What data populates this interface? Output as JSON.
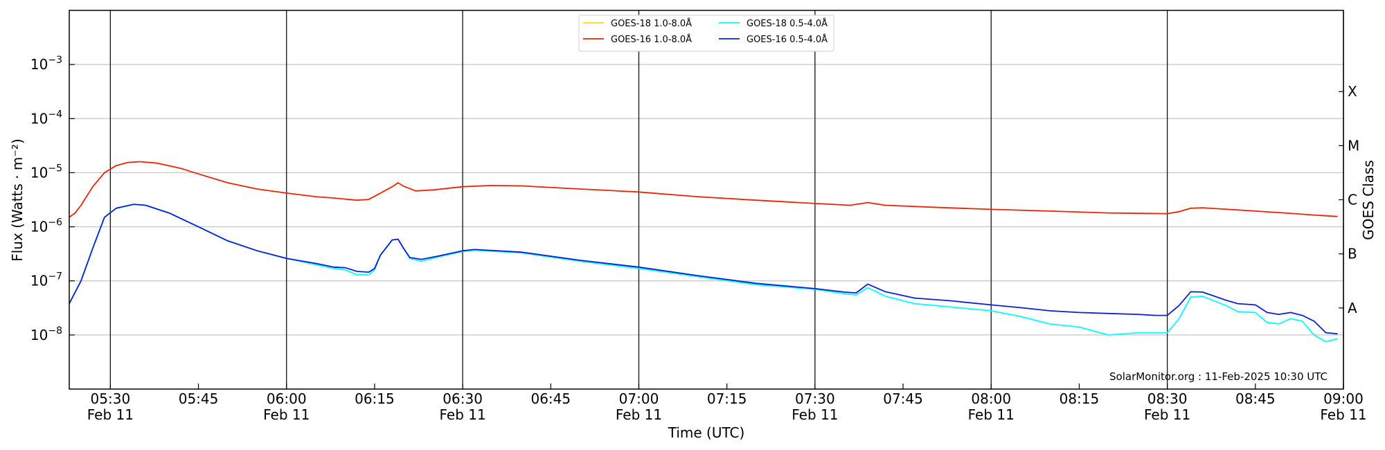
{
  "chart_data": {
    "type": "line",
    "xlabel": "Time (UTC)",
    "ylabel": "Flux (Watts · m⁻²)",
    "y2label": "GOES Class",
    "x_range": [
      "05:23",
      "09:00"
    ],
    "y_scale": "log",
    "ylim": [
      1e-09,
      0.01
    ],
    "grid": "on",
    "legend_position": "top-center",
    "credit": "SolarMonitor.org : 11-Feb-2025 10:30 UTC",
    "x_ticks": [
      {
        "time": "05:30",
        "label": "05:30",
        "date": "Feb 11"
      },
      {
        "time": "05:45",
        "label": "05:45",
        "date": ""
      },
      {
        "time": "06:00",
        "label": "06:00",
        "date": "Feb 11"
      },
      {
        "time": "06:15",
        "label": "06:15",
        "date": ""
      },
      {
        "time": "06:30",
        "label": "06:30",
        "date": "Feb 11"
      },
      {
        "time": "06:45",
        "label": "06:45",
        "date": ""
      },
      {
        "time": "07:00",
        "label": "07:00",
        "date": "Feb 11"
      },
      {
        "time": "07:15",
        "label": "07:15",
        "date": ""
      },
      {
        "time": "07:30",
        "label": "07:30",
        "date": "Feb 11"
      },
      {
        "time": "07:45",
        "label": "07:45",
        "date": ""
      },
      {
        "time": "08:00",
        "label": "08:00",
        "date": "Feb 11"
      },
      {
        "time": "08:15",
        "label": "08:15",
        "date": ""
      },
      {
        "time": "08:30",
        "label": "08:30",
        "date": "Feb 11"
      },
      {
        "time": "08:45",
        "label": "08:45",
        "date": ""
      },
      {
        "time": "09:00",
        "label": "09:00",
        "date": "Feb 11"
      }
    ],
    "y_ticks": [
      {
        "exp": -8
      },
      {
        "exp": -7
      },
      {
        "exp": -6
      },
      {
        "exp": -5
      },
      {
        "exp": -4
      },
      {
        "exp": -3
      }
    ],
    "class_labels": [
      {
        "label": "A",
        "value": 3.16e-08
      },
      {
        "label": "B",
        "value": 3.16e-07
      },
      {
        "label": "C",
        "value": 3.16e-06
      },
      {
        "label": "M",
        "value": 3.16e-05
      },
      {
        "label": "X",
        "value": 0.000316
      }
    ],
    "series": [
      {
        "name": "GOES-18 1.0-8.0Å",
        "color": "#ffd700",
        "points": []
      },
      {
        "name": "GOES-18 0.5-4.0Å",
        "color": "#00ffff",
        "points": [
          [
            "05:23",
            3.8e-08
          ],
          [
            "05:25",
            1e-07
          ],
          [
            "05:27",
            4e-07
          ],
          [
            "05:29",
            1.5e-06
          ],
          [
            "05:31",
            2.2e-06
          ],
          [
            "05:34",
            2.6e-06
          ],
          [
            "05:36",
            2.5e-06
          ],
          [
            "05:40",
            1.8e-06
          ],
          [
            "05:45",
            1e-06
          ],
          [
            "05:50",
            5.5e-07
          ],
          [
            "05:55",
            3.6e-07
          ],
          [
            "06:00",
            2.6e-07
          ],
          [
            "06:05",
            2e-07
          ],
          [
            "06:08",
            1.7e-07
          ],
          [
            "06:10",
            1.6e-07
          ],
          [
            "06:12",
            1.3e-07
          ],
          [
            "06:14",
            1.3e-07
          ],
          [
            "06:15",
            1.6e-07
          ],
          [
            "06:16",
            3e-07
          ],
          [
            "06:18",
            5.7e-07
          ],
          [
            "06:19",
            5.9e-07
          ],
          [
            "06:20",
            3.9e-07
          ],
          [
            "06:21",
            2.6e-07
          ],
          [
            "06:23",
            2.3e-07
          ],
          [
            "06:26",
            2.8e-07
          ],
          [
            "06:30",
            3.5e-07
          ],
          [
            "06:32",
            3.7e-07
          ],
          [
            "06:40",
            3.3e-07
          ],
          [
            "06:50",
            2.3e-07
          ],
          [
            "07:00",
            1.7e-07
          ],
          [
            "07:10",
            1.2e-07
          ],
          [
            "07:20",
            8.5e-08
          ],
          [
            "07:30",
            7e-08
          ],
          [
            "07:35",
            5.8e-08
          ],
          [
            "07:37",
            5.5e-08
          ],
          [
            "07:39",
            7.5e-08
          ],
          [
            "07:42",
            5.2e-08
          ],
          [
            "07:47",
            3.8e-08
          ],
          [
            "07:53",
            3.3e-08
          ],
          [
            "08:00",
            2.8e-08
          ],
          [
            "08:05",
            2.2e-08
          ],
          [
            "08:10",
            1.6e-08
          ],
          [
            "08:15",
            1.4e-08
          ],
          [
            "08:20",
            1e-08
          ],
          [
            "08:25",
            1.1e-08
          ],
          [
            "08:28",
            1.1e-08
          ],
          [
            "08:30",
            1.1e-08
          ],
          [
            "08:32",
            2e-08
          ],
          [
            "08:34",
            5e-08
          ],
          [
            "08:36",
            5.2e-08
          ],
          [
            "08:40",
            3.5e-08
          ],
          [
            "08:42",
            2.7e-08
          ],
          [
            "08:45",
            2.6e-08
          ],
          [
            "08:47",
            1.7e-08
          ],
          [
            "08:49",
            1.6e-08
          ],
          [
            "08:51",
            2e-08
          ],
          [
            "08:53",
            1.8e-08
          ],
          [
            "08:55",
            1e-08
          ],
          [
            "08:57",
            7.5e-09
          ],
          [
            "08:59",
            8.5e-09
          ]
        ]
      },
      {
        "name": "GOES-16 1.0-8.0Å",
        "color": "#ee2200",
        "points": [
          [
            "05:23",
            1.5e-06
          ],
          [
            "05:24",
            1.8e-06
          ],
          [
            "05:25",
            2.5e-06
          ],
          [
            "05:27",
            5.5e-06
          ],
          [
            "05:29",
            1e-05
          ],
          [
            "05:31",
            1.35e-05
          ],
          [
            "05:33",
            1.55e-05
          ],
          [
            "05:35",
            1.6e-05
          ],
          [
            "05:38",
            1.5e-05
          ],
          [
            "05:42",
            1.2e-05
          ],
          [
            "05:45",
            9.5e-06
          ],
          [
            "05:50",
            6.5e-06
          ],
          [
            "05:55",
            5e-06
          ],
          [
            "06:00",
            4.2e-06
          ],
          [
            "06:05",
            3.6e-06
          ],
          [
            "06:08",
            3.4e-06
          ],
          [
            "06:12",
            3.1e-06
          ],
          [
            "06:14",
            3.2e-06
          ],
          [
            "06:16",
            4.2e-06
          ],
          [
            "06:18",
            5.5e-06
          ],
          [
            "06:19",
            6.5e-06
          ],
          [
            "06:20",
            5.6e-06
          ],
          [
            "06:22",
            4.6e-06
          ],
          [
            "06:25",
            4.8e-06
          ],
          [
            "06:30",
            5.5e-06
          ],
          [
            "06:35",
            5.8e-06
          ],
          [
            "06:40",
            5.7e-06
          ],
          [
            "06:50",
            5e-06
          ],
          [
            "07:00",
            4.4e-06
          ],
          [
            "07:10",
            3.6e-06
          ],
          [
            "07:20",
            3.1e-06
          ],
          [
            "07:30",
            2.7e-06
          ],
          [
            "07:36",
            2.5e-06
          ],
          [
            "07:39",
            2.8e-06
          ],
          [
            "07:42",
            2.5e-06
          ],
          [
            "07:50",
            2.3e-06
          ],
          [
            "08:00",
            2.1e-06
          ],
          [
            "08:10",
            1.95e-06
          ],
          [
            "08:20",
            1.8e-06
          ],
          [
            "08:30",
            1.75e-06
          ],
          [
            "08:32",
            1.9e-06
          ],
          [
            "08:34",
            2.2e-06
          ],
          [
            "08:36",
            2.25e-06
          ],
          [
            "08:45",
            1.95e-06
          ],
          [
            "08:50",
            1.8e-06
          ],
          [
            "08:55",
            1.65e-06
          ],
          [
            "08:59",
            1.55e-06
          ]
        ]
      },
      {
        "name": "GOES-16 0.5-4.0Å",
        "color": "#0a1fd4",
        "points": [
          [
            "05:23",
            3.8e-08
          ],
          [
            "05:25",
            1e-07
          ],
          [
            "05:27",
            4e-07
          ],
          [
            "05:29",
            1.5e-06
          ],
          [
            "05:31",
            2.2e-06
          ],
          [
            "05:34",
            2.6e-06
          ],
          [
            "05:36",
            2.5e-06
          ],
          [
            "05:40",
            1.8e-06
          ],
          [
            "05:45",
            1e-06
          ],
          [
            "05:50",
            5.5e-07
          ],
          [
            "05:55",
            3.6e-07
          ],
          [
            "06:00",
            2.6e-07
          ],
          [
            "06:05",
            2.1e-07
          ],
          [
            "06:08",
            1.8e-07
          ],
          [
            "06:10",
            1.75e-07
          ],
          [
            "06:12",
            1.5e-07
          ],
          [
            "06:14",
            1.45e-07
          ],
          [
            "06:15",
            1.7e-07
          ],
          [
            "06:16",
            3e-07
          ],
          [
            "06:18",
            5.7e-07
          ],
          [
            "06:19",
            5.9e-07
          ],
          [
            "06:20",
            3.9e-07
          ],
          [
            "06:21",
            2.7e-07
          ],
          [
            "06:23",
            2.5e-07
          ],
          [
            "06:26",
            2.9e-07
          ],
          [
            "06:30",
            3.6e-07
          ],
          [
            "06:32",
            3.8e-07
          ],
          [
            "06:40",
            3.4e-07
          ],
          [
            "06:50",
            2.4e-07
          ],
          [
            "07:00",
            1.8e-07
          ],
          [
            "07:10",
            1.25e-07
          ],
          [
            "07:20",
            9e-08
          ],
          [
            "07:30",
            7.2e-08
          ],
          [
            "07:35",
            6.2e-08
          ],
          [
            "07:37",
            6e-08
          ],
          [
            "07:39",
            8.7e-08
          ],
          [
            "07:42",
            6.3e-08
          ],
          [
            "07:47",
            4.8e-08
          ],
          [
            "07:53",
            4.3e-08
          ],
          [
            "08:00",
            3.6e-08
          ],
          [
            "08:05",
            3.2e-08
          ],
          [
            "08:10",
            2.8e-08
          ],
          [
            "08:15",
            2.6e-08
          ],
          [
            "08:20",
            2.5e-08
          ],
          [
            "08:25",
            2.4e-08
          ],
          [
            "08:28",
            2.3e-08
          ],
          [
            "08:30",
            2.3e-08
          ],
          [
            "08:32",
            3.5e-08
          ],
          [
            "08:34",
            6.3e-08
          ],
          [
            "08:36",
            6.2e-08
          ],
          [
            "08:40",
            4.4e-08
          ],
          [
            "08:42",
            3.8e-08
          ],
          [
            "08:45",
            3.6e-08
          ],
          [
            "08:47",
            2.6e-08
          ],
          [
            "08:49",
            2.4e-08
          ],
          [
            "08:51",
            2.6e-08
          ],
          [
            "08:53",
            2.3e-08
          ],
          [
            "08:55",
            1.8e-08
          ],
          [
            "08:57",
            1.1e-08
          ],
          [
            "08:59",
            1.05e-08
          ]
        ]
      }
    ]
  }
}
